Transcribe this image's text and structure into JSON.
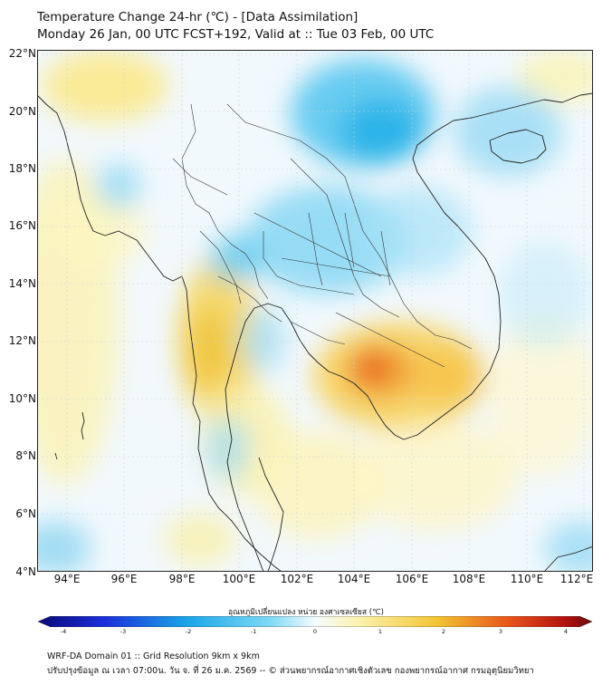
{
  "title": {
    "line1": "Temperature Change 24-hr (℃) - [Data Assimilation]",
    "line2": "Monday 26 Jan, 00 UTC FCST+192, Valid at :: Tue 03 Feb, 00 UTC"
  },
  "map": {
    "lat_labels": [
      "22°N",
      "20°N",
      "18°N",
      "16°N",
      "14°N",
      "12°N",
      "10°N",
      "8°N",
      "6°N",
      "4°N"
    ],
    "lon_labels": [
      "94°E",
      "96°E",
      "98°E",
      "100°E",
      "102°E",
      "104°E",
      "106°E",
      "108°E",
      "110°E",
      "112°E"
    ],
    "lat_range": [
      4,
      22.2
    ],
    "lon_range": [
      93,
      112.3
    ]
  },
  "colorbar": {
    "label": "อุณหภูมิเปลี่ยนแปลง หน่วย องศาเซลเซียส (℃)",
    "ticks": [
      "-4",
      "-3",
      "-2",
      "-1",
      "0",
      "1",
      "2",
      "3",
      "4"
    ],
    "min": -4,
    "max": 4
  },
  "footer": {
    "line1": "WRF-DA Domain 01 :: Grid Resolution 9km x 9km",
    "line2": "ปรับปรุงข้อมูล ณ เวลา 07:00น. วัน จ. ที่ 26 ม.ค. 2569 -- © ส่วนพยากรณ์อากาศเชิงตัวเลข กองพยากรณ์อากาศ กรมอุตุนิยมวิทยา"
  },
  "colors": {
    "cold": "#1aa6e8",
    "warm": "#f2c531",
    "hot": "#e8541a"
  }
}
